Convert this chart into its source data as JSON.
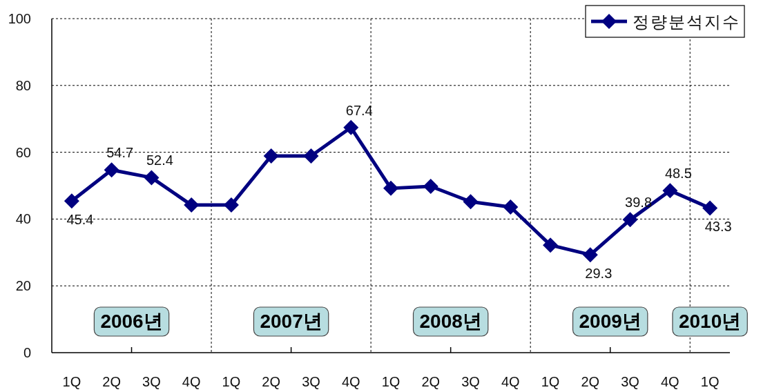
{
  "chart_data": {
    "type": "line",
    "categories": [
      "1Q",
      "2Q",
      "3Q",
      "4Q",
      "1Q",
      "2Q",
      "3Q",
      "4Q",
      "1Q",
      "2Q",
      "3Q",
      "4Q",
      "1Q",
      "2Q",
      "3Q",
      "4Q",
      "1Q"
    ],
    "series": [
      {
        "name": "정량분석지수",
        "color": "#000080",
        "values": [
          45.4,
          54.7,
          52.4,
          44.2,
          44.2,
          58.9,
          58.9,
          67.4,
          49.2,
          49.8,
          45.2,
          43.6,
          32.2,
          29.3,
          39.8,
          48.5,
          43.3
        ],
        "value_labels": [
          "45.4",
          "54.7",
          "52.4",
          null,
          null,
          null,
          null,
          "67.4",
          null,
          null,
          null,
          null,
          null,
          "29.3",
          "39.8",
          "48.5",
          "43.3"
        ]
      }
    ],
    "ylim": [
      0,
      100
    ],
    "yticks": [
      0,
      20,
      40,
      60,
      80,
      100
    ],
    "annotations": [
      "2006년",
      "2007년",
      "2008년",
      "2009년",
      "2010년"
    ],
    "grid": true,
    "legend": "top right",
    "marker": "diamond",
    "line_style": "solid"
  }
}
